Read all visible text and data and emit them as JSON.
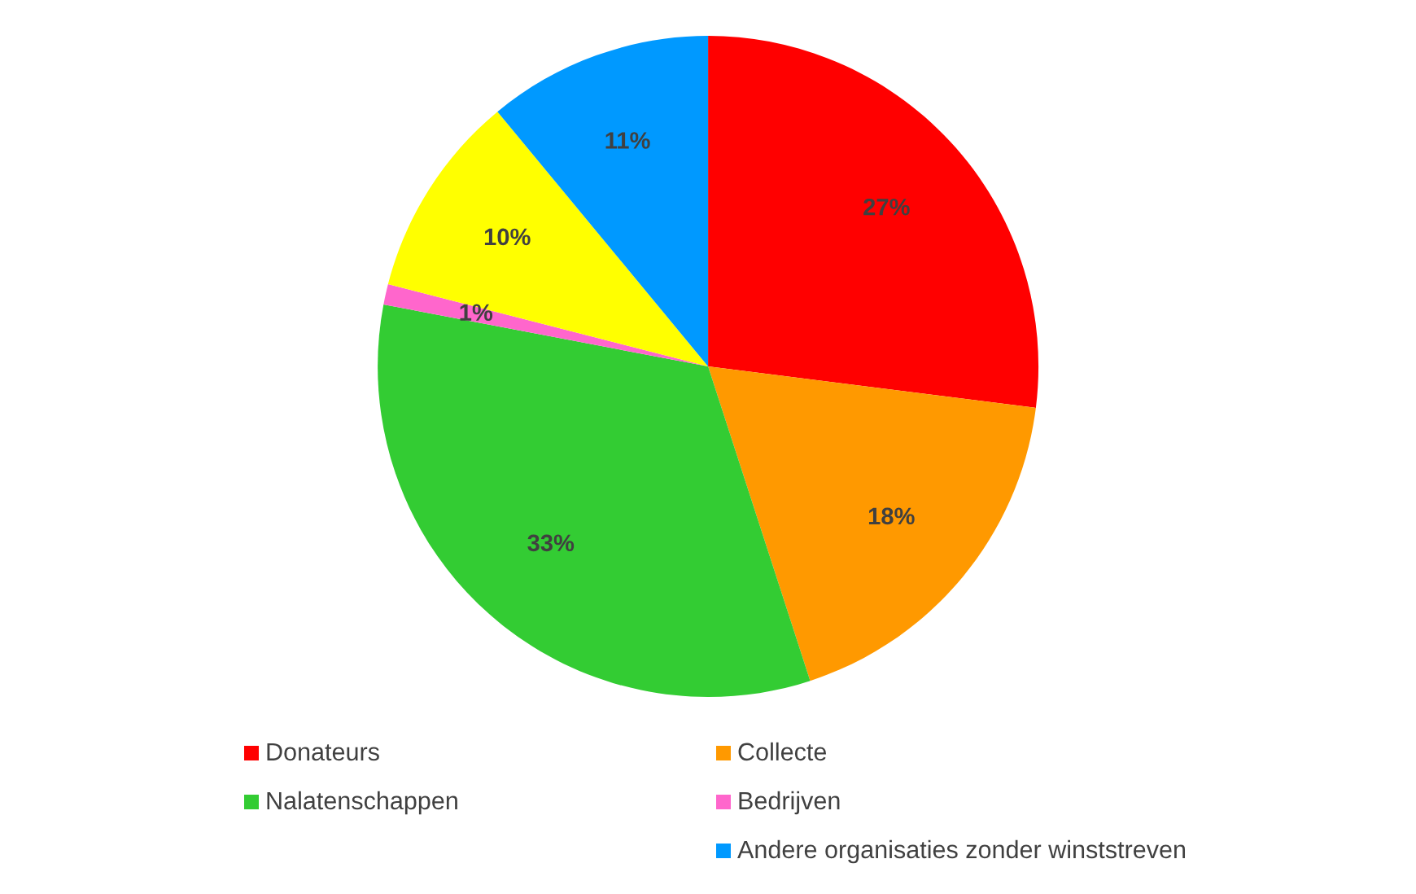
{
  "chart_data": {
    "type": "pie",
    "categories": [
      "Donateurs",
      "Collecte",
      "Nalatenschappen",
      "Bedrijven",
      null,
      "Andere organisaties zonder winststreven"
    ],
    "values": [
      27,
      18,
      33,
      1,
      10,
      11
    ],
    "value_labels": [
      "27%",
      "18%",
      "33%",
      "1%",
      "10%",
      "11%"
    ],
    "colors": [
      "#ff0000",
      "#ff9900",
      "#33cc33",
      "#ff66cc",
      "#ffff00",
      "#0099ff"
    ],
    "legend": "bottom"
  }
}
